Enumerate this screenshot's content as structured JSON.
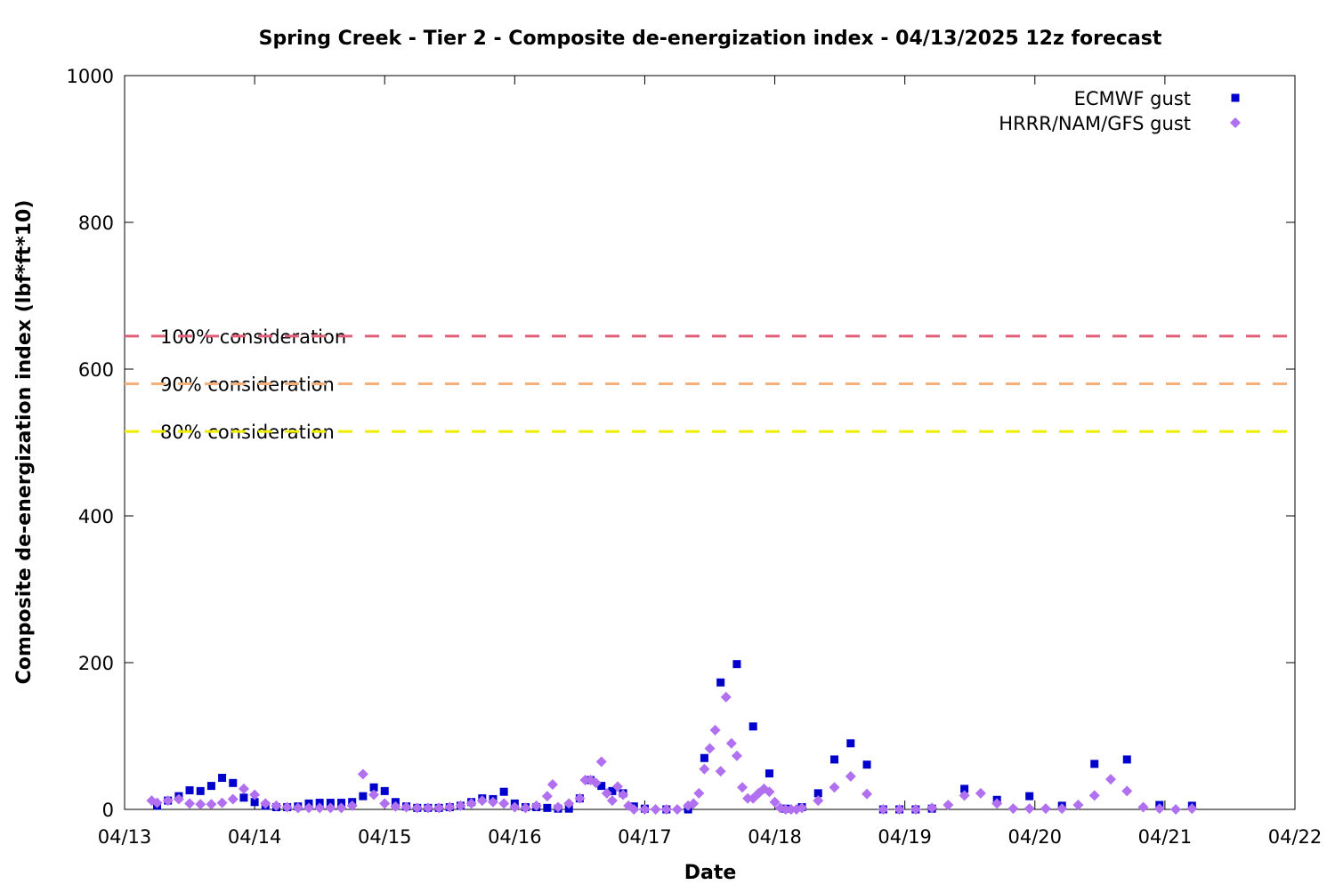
{
  "chart_data": {
    "type": "scatter",
    "title": "Spring Creek - Tier 2 - Composite de-energization index - 04/13/2025 12z forecast",
    "xlabel": "Date",
    "ylabel": "Composite de-energization index (lbf*ft*10)",
    "xlim": [
      0,
      216
    ],
    "xticks": [
      {
        "value": 0,
        "label": "04/13"
      },
      {
        "value": 24,
        "label": "04/14"
      },
      {
        "value": 48,
        "label": "04/15"
      },
      {
        "value": 72,
        "label": "04/16"
      },
      {
        "value": 96,
        "label": "04/17"
      },
      {
        "value": 120,
        "label": "04/18"
      },
      {
        "value": 144,
        "label": "04/19"
      },
      {
        "value": 168,
        "label": "04/20"
      },
      {
        "value": 192,
        "label": "04/21"
      },
      {
        "value": 216,
        "label": "04/22"
      }
    ],
    "ylim": [
      0,
      1000
    ],
    "yticks": [
      0,
      200,
      400,
      600,
      800,
      1000
    ],
    "grid": false,
    "legend": "top-right",
    "thresholds": [
      {
        "label": "100% consideration",
        "value": 645,
        "color": "#e0607a"
      },
      {
        "label": "90% consideration",
        "value": 580,
        "color": "#f4b07a"
      },
      {
        "label": "80% consideration",
        "value": 515,
        "color": "#eeee00"
      }
    ],
    "series": [
      {
        "name": "ECMWF gust",
        "color": "#0000cc",
        "marker": "square",
        "x": [
          6,
          8,
          10,
          12,
          14,
          16,
          18,
          20,
          22,
          24,
          26,
          28,
          30,
          32,
          34,
          36,
          38,
          40,
          42,
          44,
          46,
          48,
          50,
          52,
          54,
          56,
          58,
          60,
          62,
          64,
          66,
          68,
          70,
          72,
          74,
          76,
          78,
          80,
          82,
          84,
          86,
          88,
          90,
          92,
          94,
          96,
          100,
          104,
          107,
          110,
          113,
          116,
          119,
          122,
          125,
          128,
          131,
          134,
          137,
          140,
          143,
          146,
          149,
          155,
          161,
          167,
          173,
          179,
          185,
          191,
          197
        ],
        "values": [
          5,
          12,
          18,
          26,
          25,
          32,
          43,
          36,
          16,
          10,
          5,
          3,
          3,
          4,
          8,
          9,
          9,
          9,
          10,
          18,
          30,
          25,
          10,
          4,
          2,
          2,
          2,
          3,
          5,
          10,
          15,
          14,
          24,
          8,
          3,
          3,
          2,
          1,
          1,
          15,
          40,
          32,
          25,
          22,
          4,
          1,
          0,
          0,
          70,
          173,
          198,
          113,
          49,
          1,
          3,
          22,
          68,
          90,
          61,
          0,
          0,
          0,
          1,
          28,
          13,
          18,
          5,
          62,
          68,
          6,
          5
        ]
      },
      {
        "name": "HRRR/NAM/GFS gust",
        "color": "#b070f0",
        "marker": "diamond",
        "x": [
          5,
          6,
          8,
          10,
          12,
          14,
          16,
          18,
          20,
          22,
          24,
          26,
          28,
          30,
          32,
          34,
          36,
          38,
          40,
          42,
          44,
          46,
          48,
          50,
          52,
          54,
          56,
          58,
          60,
          62,
          64,
          66,
          68,
          70,
          72,
          74,
          76,
          78,
          79,
          80,
          82,
          84,
          85,
          86,
          87,
          88,
          89,
          90,
          91,
          92,
          93,
          94,
          96,
          98,
          100,
          102,
          104,
          105,
          106,
          107,
          108,
          109,
          110,
          111,
          112,
          113,
          114,
          115,
          116,
          117,
          118,
          119,
          120,
          121,
          122,
          123,
          124,
          125,
          128,
          131,
          134,
          137,
          140,
          143,
          146,
          149,
          152,
          155,
          158,
          161,
          164,
          167,
          170,
          173,
          176,
          179,
          182,
          185,
          188,
          191,
          194,
          197
        ],
        "values": [
          12,
          9,
          12,
          14,
          8,
          7,
          7,
          9,
          14,
          28,
          20,
          8,
          5,
          3,
          2,
          2,
          2,
          2,
          2,
          5,
          48,
          20,
          8,
          4,
          3,
          2,
          2,
          2,
          3,
          5,
          8,
          12,
          10,
          8,
          3,
          2,
          5,
          18,
          34,
          3,
          8,
          15,
          40,
          40,
          36,
          65,
          22,
          12,
          31,
          20,
          5,
          0,
          0,
          0,
          0,
          0,
          5,
          8,
          22,
          55,
          83,
          108,
          52,
          153,
          90,
          73,
          30,
          15,
          15,
          22,
          28,
          24,
          10,
          2,
          0,
          0,
          0,
          2,
          12,
          30,
          45,
          21,
          0,
          0,
          0,
          2,
          6,
          19,
          22,
          8,
          1,
          1,
          1,
          1,
          6,
          19,
          41,
          25,
          3,
          1,
          0,
          1
        ]
      }
    ]
  }
}
